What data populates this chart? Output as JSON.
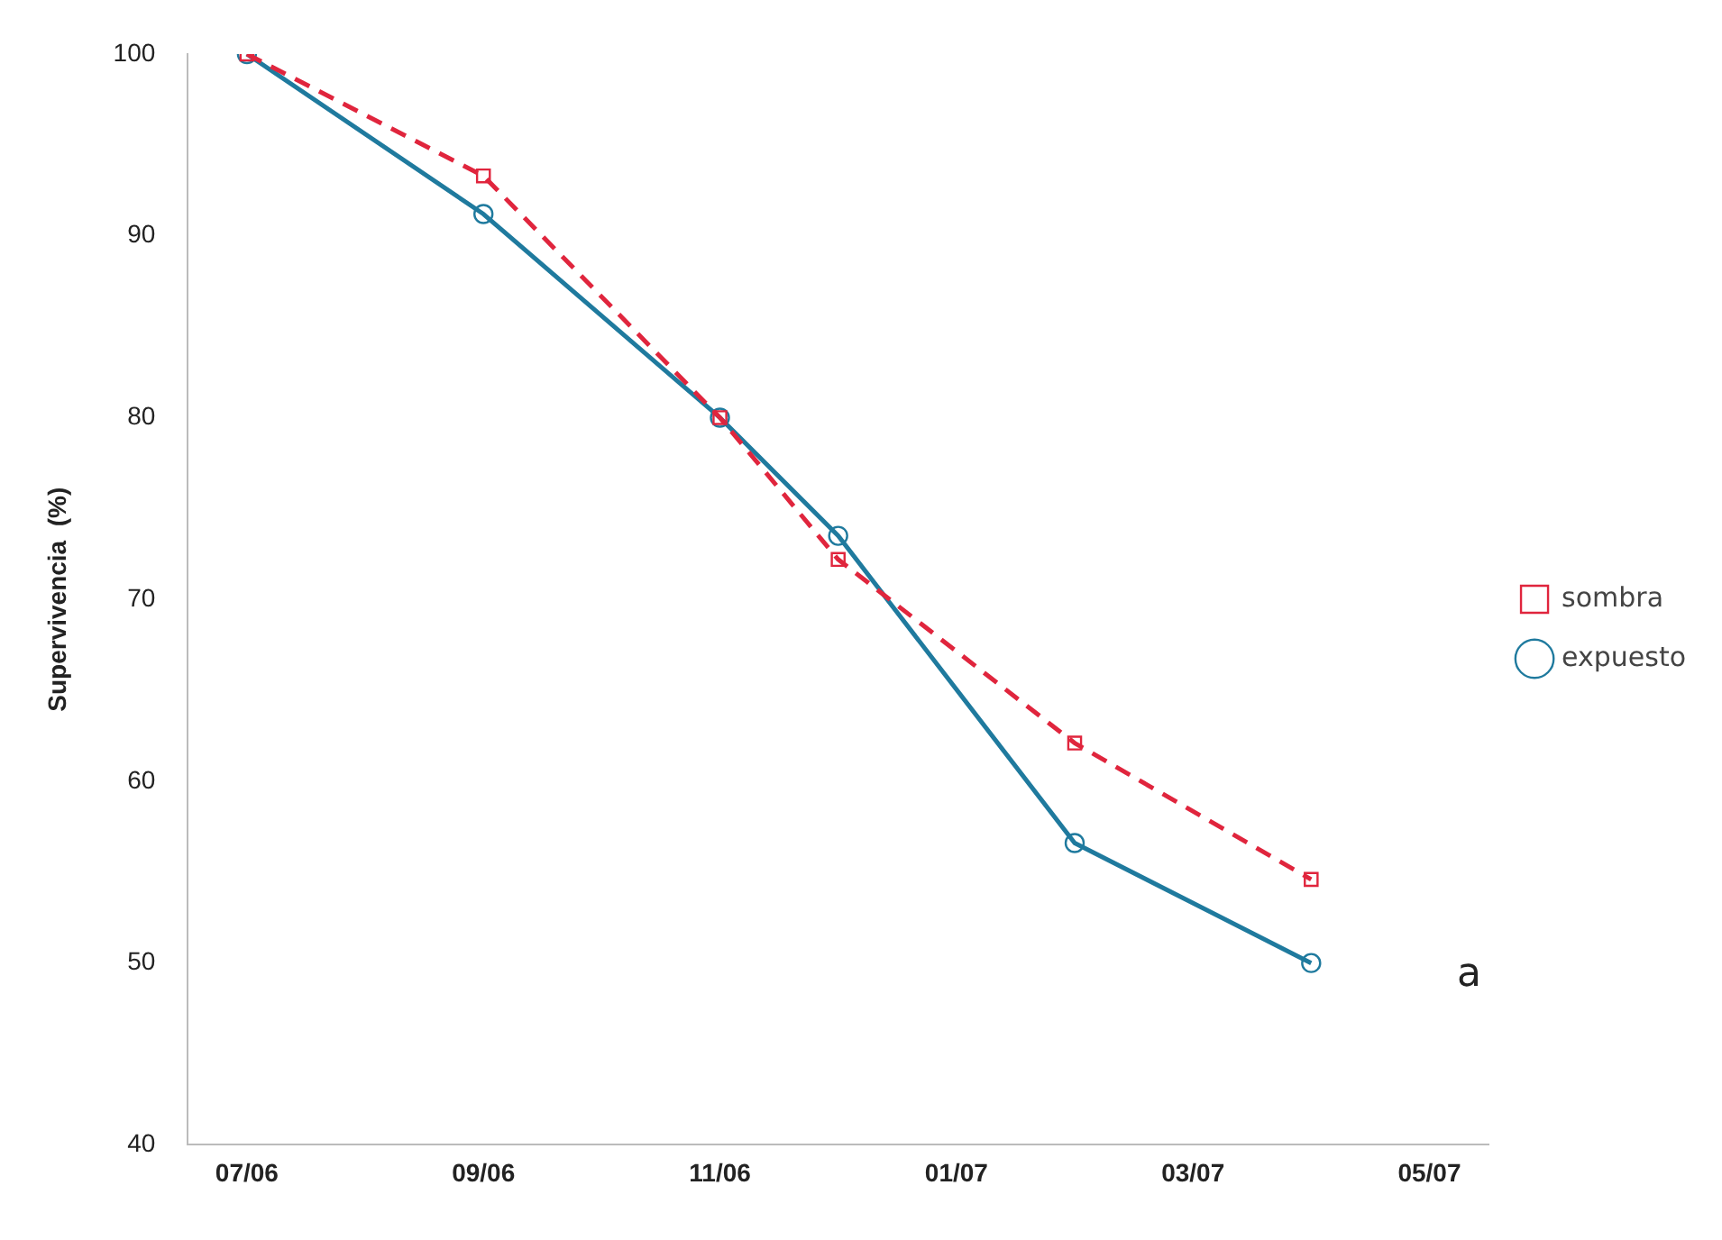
{
  "chart_data": {
    "type": "line",
    "ylabel": "Supervivencia  (%)",
    "categories": [
      "07/06",
      null,
      "09/06",
      null,
      "11/06",
      null,
      "01/07",
      null,
      "03/07",
      null,
      "05/07"
    ],
    "ylim": [
      40,
      100
    ],
    "yticks": [
      40,
      50,
      60,
      70,
      80,
      90,
      100
    ],
    "series": [
      {
        "name": "sombra",
        "color": "#e0253d",
        "marker": "square",
        "line_style": "dashed",
        "values": [
          100,
          null,
          93.3,
          null,
          80,
          72.2,
          null,
          62.1,
          null,
          54.6,
          null
        ]
      },
      {
        "name": "expuesto",
        "color": "#1f7a9e",
        "marker": "circle",
        "line_style": "solid",
        "values": [
          100,
          null,
          91.2,
          null,
          80,
          73.5,
          null,
          56.6,
          null,
          50.0,
          null
        ]
      }
    ],
    "grid": false,
    "legend": "right",
    "annotations": [
      "a"
    ]
  }
}
